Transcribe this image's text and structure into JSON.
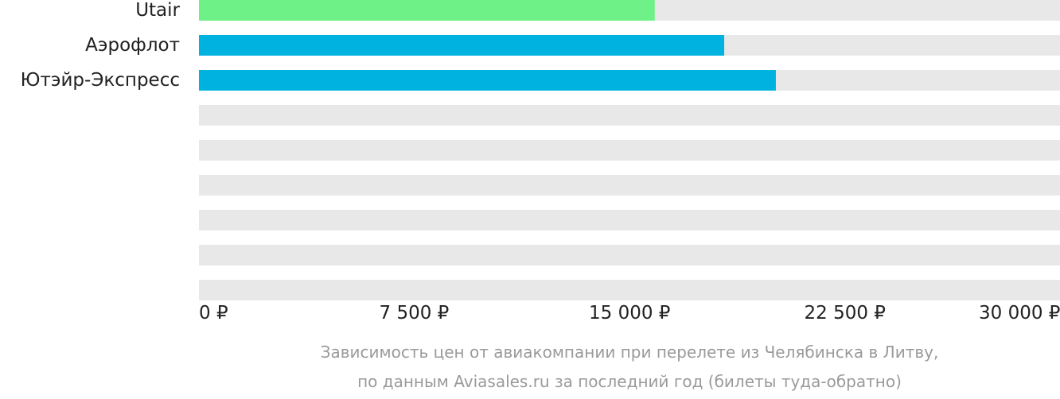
{
  "chart_data": {
    "type": "bar",
    "orientation": "horizontal",
    "categories": [
      "Utair",
      "Аэрофлот",
      "Ютэйр-Экспресс",
      "",
      "",
      "",
      "",
      "",
      ""
    ],
    "values": [
      15880,
      18300,
      20100,
      null,
      null,
      null,
      null,
      null,
      null
    ],
    "colors": [
      "#6ef287",
      "#00b2e0",
      "#00b2e0"
    ],
    "track_color": "#e8e8e8",
    "xlim": [
      0,
      30000
    ],
    "x_ticks": [
      {
        "value": 0,
        "label": "0 ₽"
      },
      {
        "value": 7500,
        "label": "7 500 ₽"
      },
      {
        "value": 15000,
        "label": "15 000 ₽"
      },
      {
        "value": 22500,
        "label": "22 500 ₽"
      },
      {
        "value": 30000,
        "label": "30 000 ₽"
      }
    ],
    "grid": false,
    "caption": [
      "Зависимость цен от авиакомпании при перелете из Челябинска в Литву,",
      "по данным Aviasales.ru за последний год (билеты туда-обратно)"
    ]
  }
}
